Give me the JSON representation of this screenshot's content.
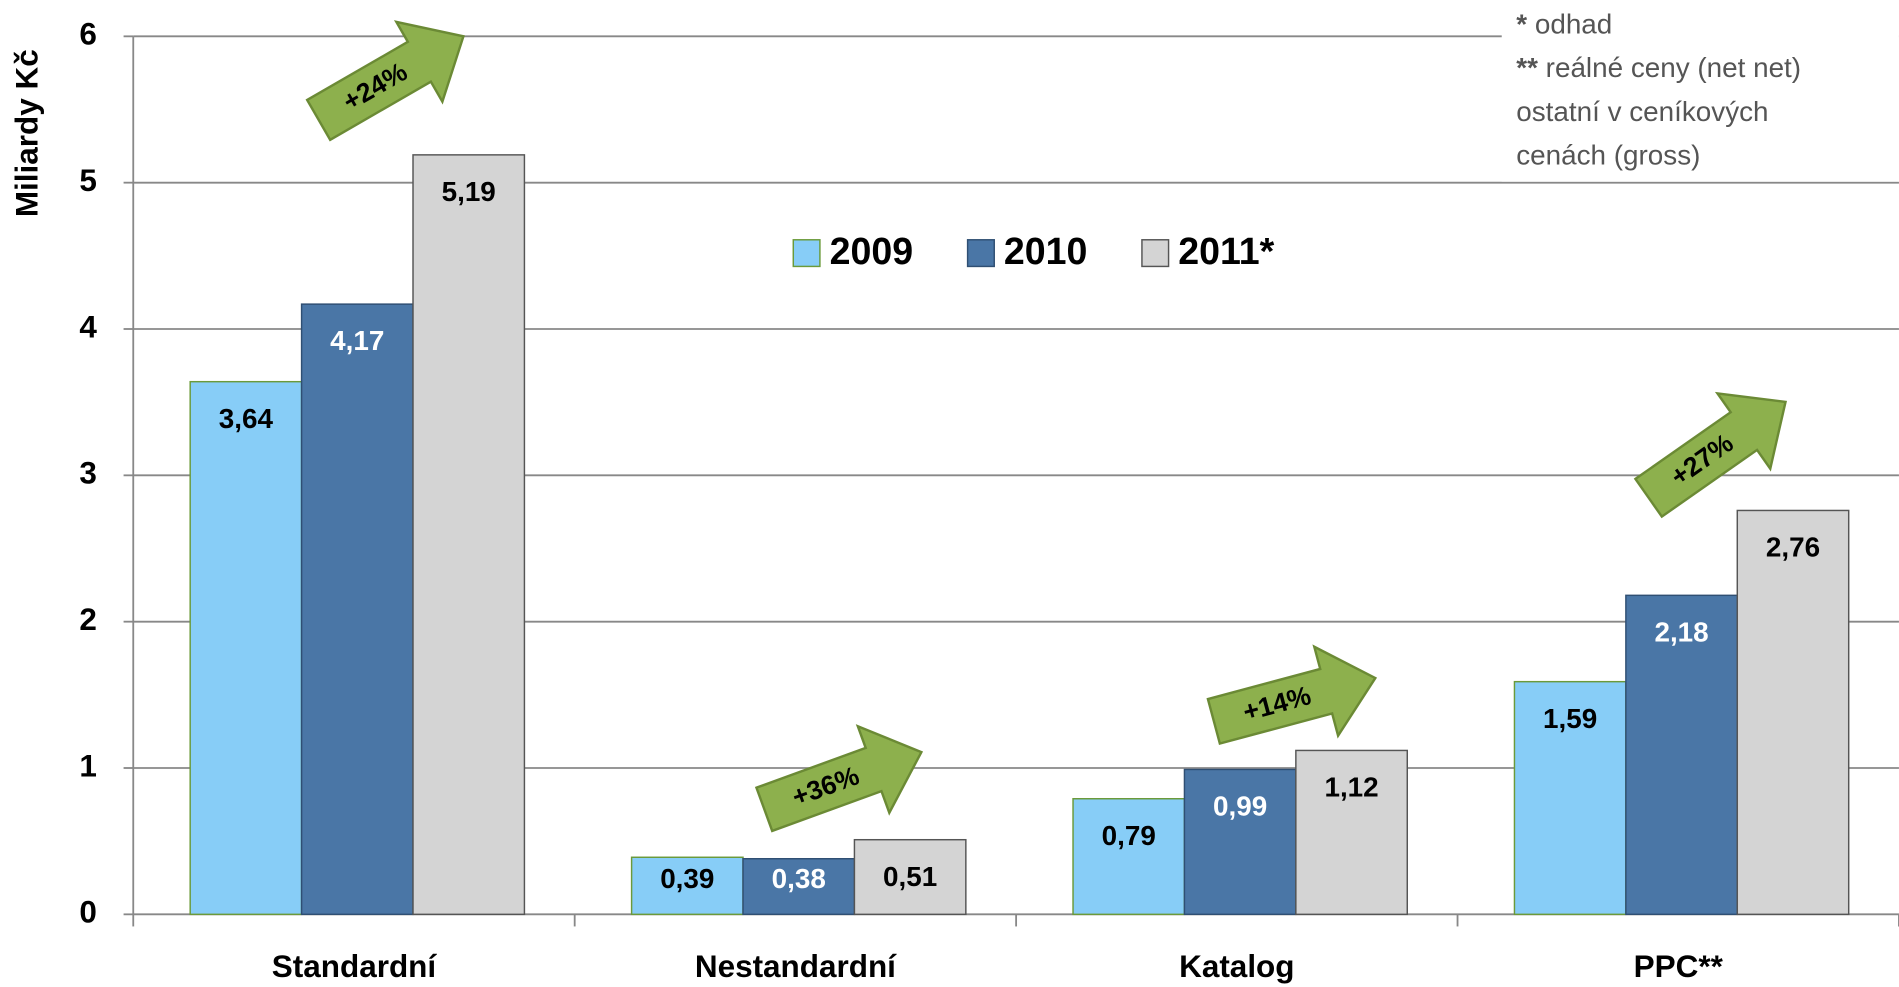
{
  "chart_data": {
    "type": "bar",
    "y_label": "Miliardy Kč",
    "categories": [
      "Standardní",
      "Nestandardní",
      "Katalog",
      "PPC**"
    ],
    "series": [
      {
        "name": "2009",
        "color": "#87cdf7",
        "values": [
          3.64,
          0.39,
          0.79,
          1.59
        ],
        "value_labels": [
          "3,64",
          "0,39",
          "0,79",
          "1,59"
        ]
      },
      {
        "name": "2010",
        "color": "#4a76a6",
        "values": [
          4.17,
          0.38,
          0.99,
          2.18
        ],
        "value_labels": [
          "4,17",
          "0,38",
          "0,99",
          "2,18"
        ]
      },
      {
        "name": "2011*",
        "color": "#d4d4d4",
        "values": [
          5.19,
          0.51,
          1.12,
          2.76
        ],
        "value_labels": [
          "5,19",
          "0,51",
          "1,12",
          "2,76"
        ]
      }
    ],
    "annotations": [
      "+24%",
      "+36%",
      "+14%",
      "+27%"
    ],
    "notes": [
      {
        "marker": "*",
        "text": "odhad"
      },
      {
        "marker": "**",
        "text": "reálné ceny (net net)"
      },
      {
        "marker": "",
        "text": "ostatní v ceníkových"
      },
      {
        "marker": "",
        "text": "cenách (gross)"
      }
    ],
    "ylim": [
      0,
      6
    ],
    "yticks": [
      0,
      1,
      2,
      3,
      4,
      5,
      6
    ],
    "grid": true
  }
}
